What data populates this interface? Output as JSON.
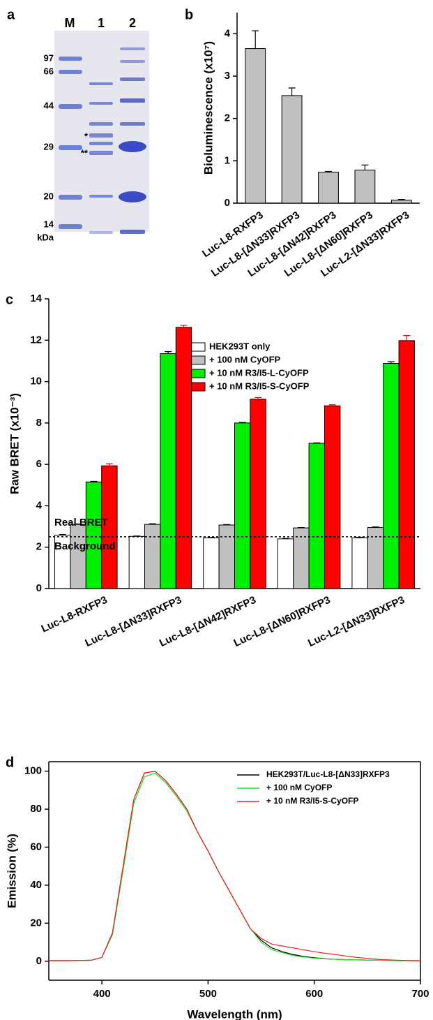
{
  "gel": {
    "panel": "a",
    "lanes": [
      "M",
      "1",
      "2"
    ],
    "markers": [
      "97",
      "66",
      "44",
      "29",
      "20",
      "14"
    ],
    "unit": "kDa",
    "bands": [
      "*",
      "**"
    ]
  },
  "chart_data": [
    {
      "type": "bar",
      "panel": "b",
      "y_label": "Bioluminescence (x10⁷)",
      "categories": [
        "Luc-L8-RXFP3",
        "Luc-L8-[ΔN33]RXFP3",
        "Luc-L8-[ΔN42]RXFP3",
        "Luc-L8-[ΔN60]RXFP3",
        "Luc-L2-[ΔN33]RXFP3"
      ],
      "series": [
        {
          "color": "#c0c0c0",
          "values": [
            3.65,
            2.54,
            0.73,
            0.78,
            0.07
          ],
          "errors": [
            0.42,
            0.18,
            0.02,
            0.12,
            0.02
          ]
        }
      ],
      "ylim": [
        0,
        4.5
      ],
      "yticks": [
        0,
        1,
        2,
        3,
        4
      ]
    },
    {
      "type": "bar",
      "panel": "c",
      "y_label": "Raw BRET (x10⁻³)",
      "categories": [
        "Luc-L8-RXFP3",
        "Luc-L8-[ΔN33]RXFP3",
        "Luc-L8-[ΔN42]RXFP3",
        "Luc-L8-[ΔN60]RXFP3",
        "Luc-L2-[ΔN33]RXFP3"
      ],
      "series": [
        {
          "name": "HEK293T only",
          "color": "#ffffff",
          "values": [
            2.58,
            2.52,
            2.45,
            2.4,
            2.45
          ],
          "errors": [
            0.03,
            0.02,
            0.02,
            0.02,
            0.02
          ]
        },
        {
          "name": "+ 100  nM CyOFP",
          "color": "#c0c0c0",
          "values": [
            3.1,
            3.1,
            3.07,
            2.93,
            2.95
          ],
          "errors": [
            0.02,
            0.03,
            0.02,
            0.02,
            0.03
          ]
        },
        {
          "name": "+ 10  nM R3/I5-L-CyOFP",
          "color": "#00ee00",
          "values": [
            5.15,
            11.35,
            8.0,
            7.02,
            10.88
          ],
          "errors": [
            0.03,
            0.1,
            0.03,
            0.02,
            0.08
          ]
        },
        {
          "name": "+ 10  nM R3/I5-S-CyOFP",
          "color": "#ff0000",
          "values": [
            5.93,
            12.62,
            9.15,
            8.83,
            11.98
          ],
          "errors": [
            0.1,
            0.1,
            0.08,
            0.05,
            0.25
          ]
        }
      ],
      "threshold": 2.5,
      "annotations": [
        "Real BRET",
        "Background"
      ],
      "ylim": [
        0,
        14
      ],
      "yticks": [
        0,
        2,
        4,
        6,
        8,
        10,
        12,
        14
      ]
    },
    {
      "type": "line",
      "panel": "d",
      "x_label": "Wavelength (nm)",
      "y_label": "Emission (%)",
      "x": [
        350,
        360,
        370,
        380,
        390,
        400,
        410,
        420,
        430,
        440,
        450,
        460,
        470,
        480,
        490,
        500,
        510,
        520,
        530,
        540,
        550,
        560,
        570,
        580,
        590,
        600,
        610,
        620,
        630,
        640,
        650,
        660,
        670,
        680,
        690,
        700
      ],
      "series": [
        {
          "name": "HEK293T/Luc-L8-[ΔN33]RXFP3",
          "color": "#000000",
          "values": [
            0.3,
            0.3,
            0.3,
            0.4,
            0.5,
            2,
            15,
            50,
            85,
            99,
            100,
            95,
            88,
            80,
            68,
            58,
            47,
            37,
            27,
            17,
            11,
            7,
            5,
            3.5,
            2.5,
            1.8,
            1.3,
            1,
            0.8,
            0.7,
            0.6,
            0.5,
            0.4,
            0.3,
            0.3,
            0.3
          ]
        },
        {
          "name": "+ 100 nM CyOFP",
          "color": "#22dd22",
          "values": [
            0.3,
            0.3,
            0.3,
            0.4,
            0.5,
            2,
            14,
            48,
            83,
            97,
            99,
            94,
            87,
            79,
            68,
            58,
            47,
            37,
            27,
            17,
            10,
            6,
            4.5,
            3,
            2.2,
            1.6,
            1.2,
            1,
            0.8,
            0.7,
            0.6,
            0.5,
            0.4,
            0.3,
            0.3,
            0.3
          ]
        },
        {
          "name": "+ 10 nM R3/I5-S-CyOFP",
          "color": "#ee2222",
          "values": [
            0.3,
            0.3,
            0.3,
            0.4,
            0.5,
            2,
            15,
            50,
            85,
            99,
            100,
            95,
            88,
            80,
            68,
            58,
            47,
            37,
            27,
            17,
            12,
            9,
            8,
            7,
            6,
            5,
            4.2,
            3.5,
            2.7,
            2,
            1.5,
            1,
            0.7,
            0.5,
            0.3,
            0.2
          ]
        }
      ],
      "xlim": [
        350,
        700
      ],
      "xticks": [
        400,
        500,
        600,
        700
      ],
      "ylim": [
        -10,
        105
      ],
      "yticks": [
        0,
        20,
        40,
        60,
        80,
        100
      ]
    }
  ]
}
